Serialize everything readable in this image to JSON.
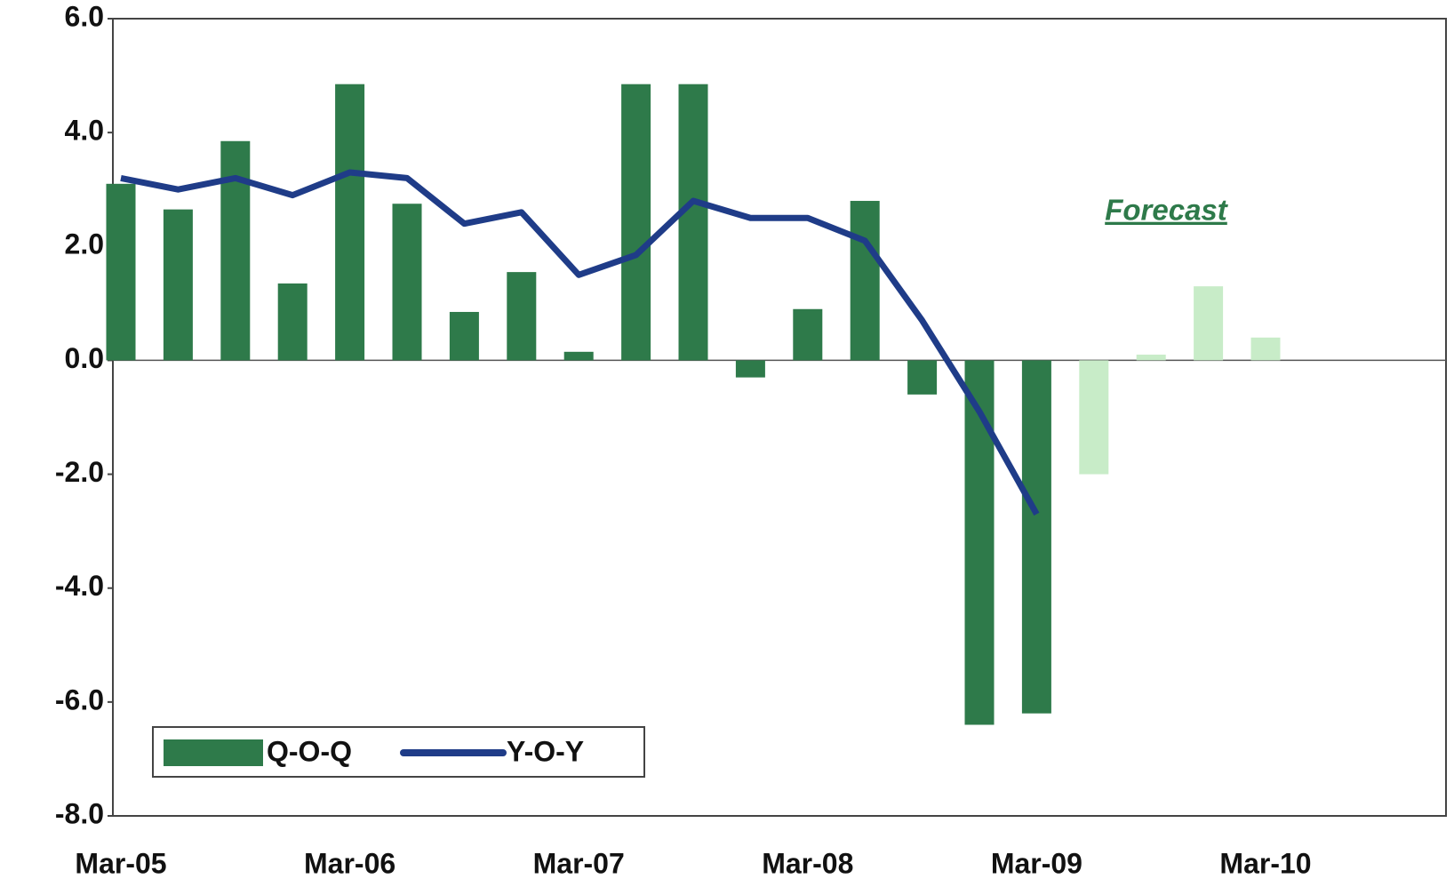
{
  "chart_data": {
    "type": "bar-line",
    "categories": [
      "Mar-05",
      null,
      null,
      null,
      "Mar-06",
      null,
      null,
      null,
      "Mar-07",
      null,
      null,
      null,
      "Mar-08",
      null,
      null,
      null,
      "Mar-09",
      null,
      null,
      null,
      "Mar-10"
    ],
    "series": [
      {
        "name": "Q-O-Q",
        "type": "bar",
        "color": "#2e7a4a",
        "colors": [
          "#2e7a4a",
          "#2e7a4a",
          "#2e7a4a",
          "#2e7a4a",
          "#2e7a4a",
          "#2e7a4a",
          "#2e7a4a",
          "#2e7a4a",
          "#2e7a4a",
          "#2e7a4a",
          "#2e7a4a",
          "#2e7a4a",
          "#2e7a4a",
          "#2e7a4a",
          "#2e7a4a",
          "#2e7a4a",
          "#2e7a4a",
          "#c8ecc8",
          "#c8ecc8",
          "#c8ecc8",
          "#c8ecc8"
        ],
        "values": [
          3.1,
          2.65,
          3.85,
          1.35,
          4.85,
          2.75,
          0.85,
          1.55,
          0.15,
          4.85,
          4.85,
          -0.3,
          0.9,
          2.8,
          -0.6,
          -6.4,
          -6.2,
          -2.0,
          0.1,
          1.3,
          0.4
        ]
      },
      {
        "name": "Y-O-Y",
        "type": "line",
        "color": "#1f3c88",
        "values": [
          3.2,
          3.0,
          3.2,
          2.9,
          3.3,
          3.2,
          2.4,
          2.6,
          1.5,
          1.85,
          2.8,
          2.5,
          2.5,
          2.1,
          0.7,
          -0.9,
          -2.7,
          null,
          null,
          null,
          null
        ]
      }
    ],
    "annotation": "Forecast",
    "ylim": [
      -8,
      6
    ],
    "yticks": [
      {
        "value": -8,
        "label": "-8.0"
      },
      {
        "value": -6,
        "label": "-6.0"
      },
      {
        "value": -4,
        "label": "-4.0"
      },
      {
        "value": -2,
        "label": "-2.0"
      },
      {
        "value": 0,
        "label": "0.0"
      },
      {
        "value": 2,
        "label": "2.0"
      },
      {
        "value": 4,
        "label": "4.0"
      },
      {
        "value": 6,
        "label": "6.0"
      }
    ],
    "legend": "bottom-left"
  }
}
